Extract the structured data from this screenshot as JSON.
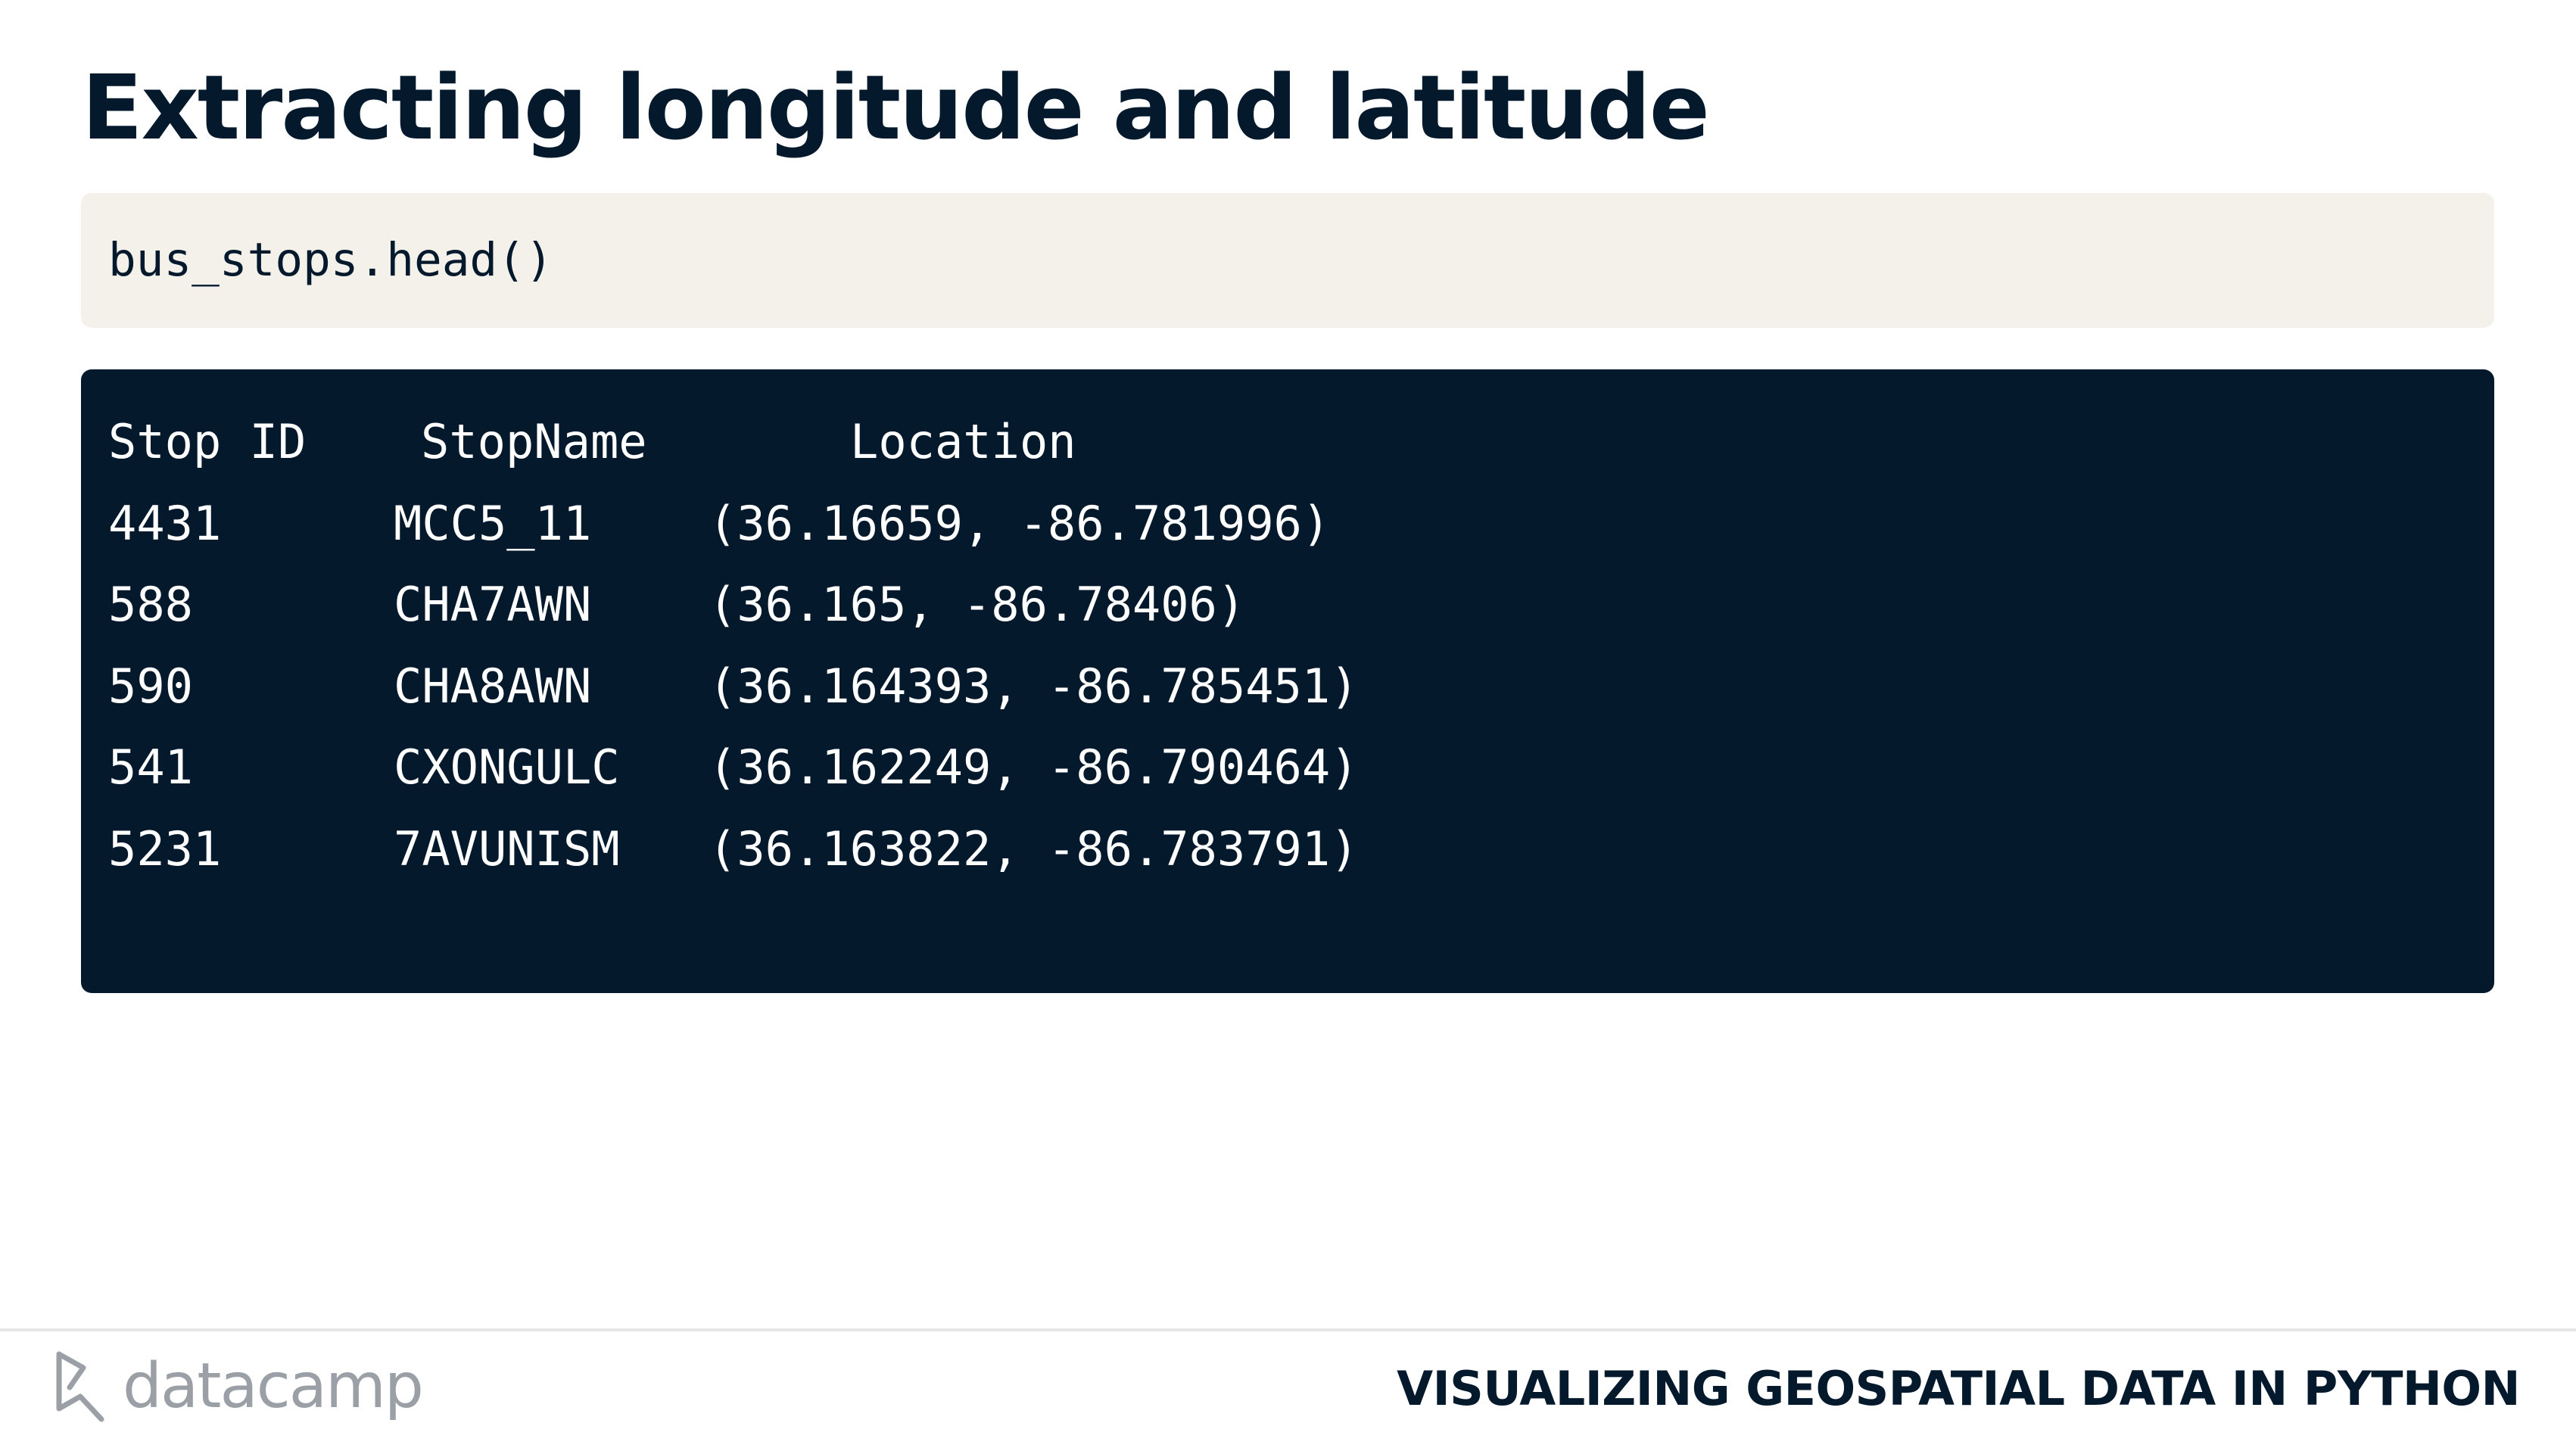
{
  "slide": {
    "title": "Extracting longitude and latitude"
  },
  "code": {
    "input": "bus_stops.head()"
  },
  "output": {
    "columns": [
      "Stop ID",
      "StopName",
      "Location"
    ],
    "rows": [
      {
        "stop_id": "4431",
        "stop_name": "MCC5_11",
        "location": "(36.16659, -86.781996)"
      },
      {
        "stop_id": "588",
        "stop_name": "CHA7AWN",
        "location": "(36.165, -86.78406)"
      },
      {
        "stop_id": "590",
        "stop_name": "CHA8AWN",
        "location": "(36.164393, -86.785451)"
      },
      {
        "stop_id": "541",
        "stop_name": "CXONGULC",
        "location": "(36.162249, -86.790464)"
      },
      {
        "stop_id": "5231",
        "stop_name": "7AVUNISM",
        "location": "(36.163822, -86.783791)"
      }
    ]
  },
  "footer": {
    "logo_text": "datacamp",
    "logo_icon": "datacamp-logo-icon",
    "course_title": "VISUALIZING GEOSPATIAL DATA IN PYTHON"
  },
  "colors": {
    "navy": "#05192d",
    "code_background": "#f4f1ea",
    "logo_gray": "#9aa0a6"
  }
}
